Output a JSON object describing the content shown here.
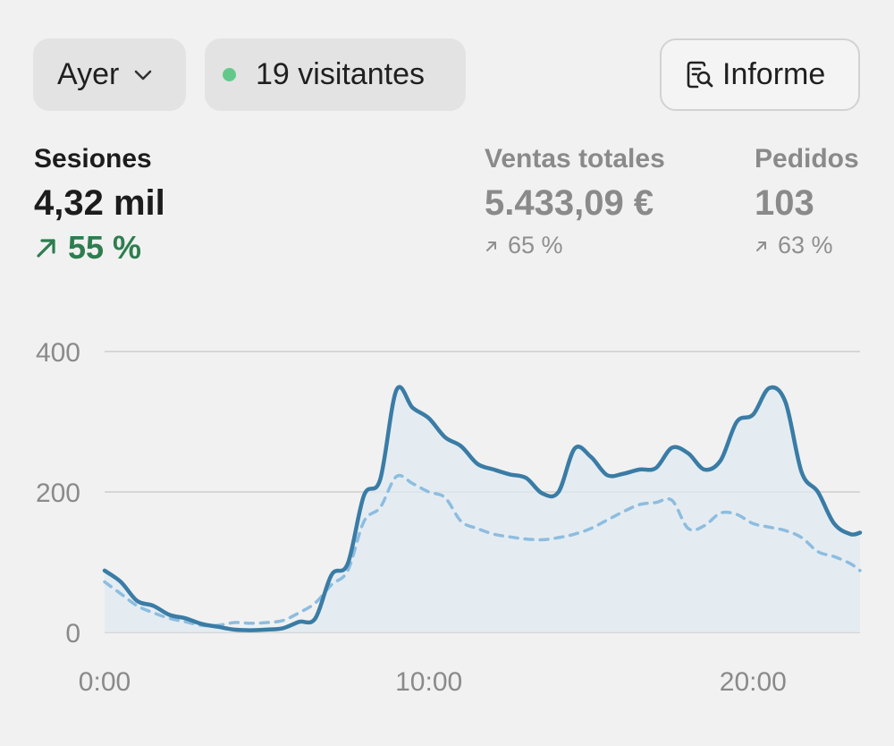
{
  "filters": {
    "period_label": "Ayer",
    "visitors_label": "19 visitantes",
    "report_label": "Informe"
  },
  "metrics": [
    {
      "label": "Sesiones",
      "value": "4,32 mil",
      "change": "55 %",
      "active": true
    },
    {
      "label": "Ventas totales",
      "value": "5.433,09 €",
      "change": "65 %",
      "active": false
    },
    {
      "label": "Pedidos",
      "value": "103",
      "change": "63 %",
      "active": false
    }
  ],
  "colors": {
    "primary_line": "#3a7ca5",
    "comparison_line": "#8dbddf",
    "area_fill": "#dfe9f1",
    "positive_change": "#2e7d4f",
    "live_dot": "#63c98a"
  },
  "icons": [
    "chevron-down-icon",
    "live-dot-icon",
    "report-search-icon",
    "arrow-up-right-icon"
  ],
  "chart_data": {
    "type": "line",
    "x_unit": "hour of day",
    "x_tick_labels": [
      "0:00",
      "10:00",
      "20:00"
    ],
    "x_tick_values": [
      0,
      10,
      20
    ],
    "xlim": [
      0,
      23.3
    ],
    "y_tick_labels": [
      "400",
      "200",
      "0"
    ],
    "y_tick_values": [
      400,
      200,
      0
    ],
    "ylim": [
      0,
      400
    ],
    "grid": true,
    "legend": "none",
    "series": [
      {
        "style": "solid",
        "filled": true,
        "x": [
          0,
          0.5,
          1,
          1.5,
          2,
          2.5,
          3,
          3.5,
          4,
          4.5,
          5,
          5.5,
          6,
          6.5,
          7,
          7.5,
          8,
          8.5,
          9,
          9.5,
          10,
          10.5,
          11,
          11.5,
          12,
          12.5,
          13,
          13.5,
          14,
          14.5,
          15,
          15.5,
          16,
          16.5,
          17,
          17.5,
          18,
          18.5,
          19,
          19.5,
          20,
          20.5,
          21,
          21.5,
          22,
          22.5,
          23,
          23.3
        ],
        "values": [
          88,
          72,
          45,
          38,
          25,
          20,
          12,
          8,
          4,
          3,
          4,
          6,
          15,
          20,
          82,
          98,
          195,
          218,
          345,
          320,
          305,
          278,
          265,
          240,
          232,
          225,
          220,
          198,
          200,
          262,
          250,
          224,
          226,
          232,
          234,
          263,
          255,
          232,
          245,
          300,
          310,
          348,
          328,
          228,
          200,
          155,
          140,
          142
        ]
      },
      {
        "style": "dashed",
        "filled": false,
        "x": [
          0,
          0.5,
          1,
          1.5,
          2,
          2.5,
          3,
          3.5,
          4,
          4.5,
          5,
          5.5,
          6,
          6.5,
          7,
          7.5,
          8,
          8.5,
          9,
          9.5,
          10,
          10.5,
          11,
          11.5,
          12,
          12.5,
          13,
          13.5,
          14,
          14.5,
          15,
          15.5,
          16,
          16.5,
          17,
          17.5,
          18,
          18.5,
          19,
          19.5,
          20,
          20.5,
          21,
          21.5,
          22,
          22.5,
          23,
          23.3
        ],
        "values": [
          72,
          55,
          38,
          28,
          20,
          15,
          10,
          10,
          14,
          13,
          14,
          17,
          28,
          42,
          68,
          88,
          158,
          178,
          222,
          212,
          200,
          192,
          158,
          148,
          140,
          136,
          133,
          132,
          135,
          140,
          148,
          160,
          172,
          182,
          185,
          188,
          148,
          152,
          170,
          168,
          155,
          150,
          145,
          135,
          115,
          108,
          98,
          88
        ]
      }
    ]
  }
}
